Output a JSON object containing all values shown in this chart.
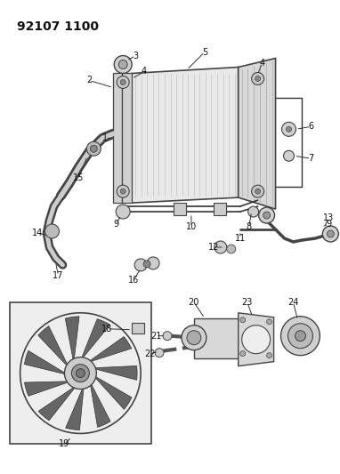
{
  "title": "92107 1100",
  "background_color": "#ffffff",
  "title_fontsize": 10,
  "title_fontweight": "bold",
  "fig_width": 3.82,
  "fig_height": 5.33,
  "dpi": 100,
  "font_size_label": 7,
  "label_color": "#111111"
}
